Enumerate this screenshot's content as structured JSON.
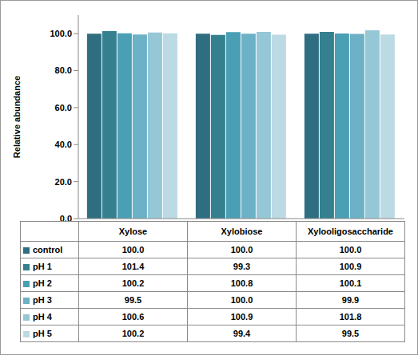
{
  "chart_data": {
    "type": "bar",
    "ylabel": "Relative abundance",
    "categories": [
      "Xylose",
      "Xylobiose",
      "Xylooligosaccharide"
    ],
    "series": [
      {
        "name": "control",
        "color": "#2f6e80",
        "values": [
          100.0,
          100.0,
          100.0
        ],
        "value_labels": [
          "100.0",
          "100.0",
          "100.0"
        ]
      },
      {
        "name": "pH 1",
        "color": "#35808f",
        "values": [
          101.4,
          99.3,
          100.9
        ],
        "value_labels": [
          "101.4",
          "99.3",
          "100.9"
        ]
      },
      {
        "name": "pH 2",
        "color": "#4a9fb5",
        "values": [
          100.2,
          100.8,
          100.1
        ],
        "value_labels": [
          "100.2",
          "100.8",
          "100.1"
        ]
      },
      {
        "name": "pH 3",
        "color": "#6cb1c6",
        "values": [
          99.5,
          100.0,
          99.9
        ],
        "value_labels": [
          "99.5",
          "100.0",
          "99.9"
        ]
      },
      {
        "name": "pH 4",
        "color": "#96c7d7",
        "values": [
          100.6,
          100.9,
          101.8
        ],
        "value_labels": [
          "100.6",
          "100.9",
          "101.8"
        ]
      },
      {
        "name": "pH 5",
        "color": "#bcdae4",
        "values": [
          100.2,
          99.4,
          99.5
        ],
        "value_labels": [
          "100.2",
          "99.4",
          "99.5"
        ]
      }
    ],
    "ylim": [
      0,
      110
    ],
    "yticks": [
      {
        "value": 0,
        "label": "0.0"
      },
      {
        "value": 20,
        "label": "20.0"
      },
      {
        "value": 40,
        "label": "40.0"
      },
      {
        "value": 60,
        "label": "60.0"
      },
      {
        "value": 80,
        "label": "80.0"
      },
      {
        "value": 100,
        "label": "100.0"
      }
    ],
    "grid": false
  }
}
